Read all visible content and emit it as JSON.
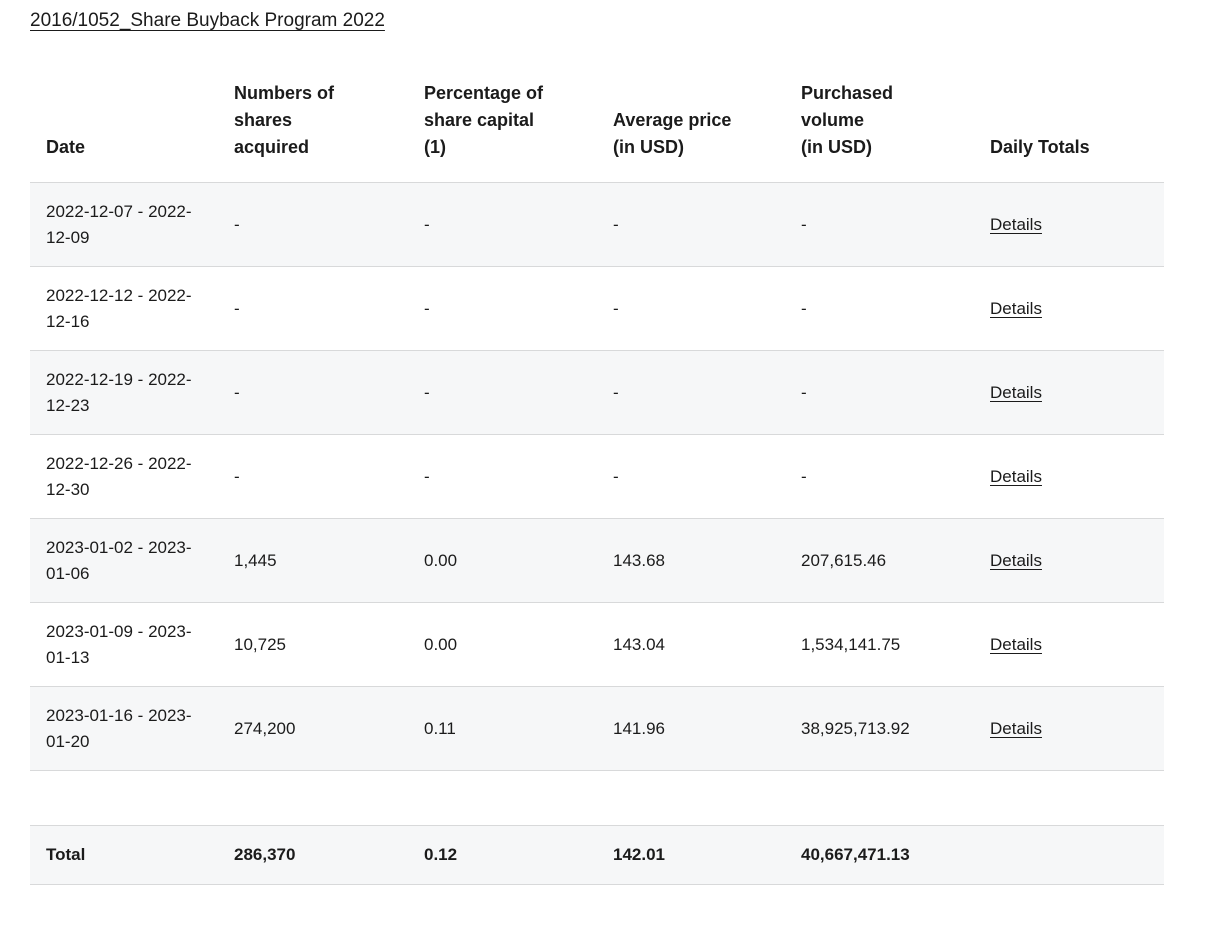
{
  "page": {
    "title": "2016/1052_Share Buyback Program 2022"
  },
  "theme": {
    "text_color": "#1b1b1b",
    "row_alt_background": "#f6f7f8",
    "border_color": "#d8d9da",
    "page_background": "#ffffff"
  },
  "table": {
    "columns": [
      {
        "id": "date",
        "lines": [
          "Date",
          "",
          ""
        ]
      },
      {
        "id": "shares",
        "lines": [
          "Numbers of",
          "shares",
          "acquired"
        ]
      },
      {
        "id": "percentage",
        "lines": [
          "Percentage of",
          "share capital",
          "(1)"
        ]
      },
      {
        "id": "avg_price",
        "lines": [
          "Average price",
          "(in USD)",
          ""
        ]
      },
      {
        "id": "volume",
        "lines": [
          "Purchased",
          "volume",
          "(in USD)"
        ]
      },
      {
        "id": "daily",
        "lines": [
          "Daily Totals",
          "",
          ""
        ]
      }
    ],
    "details_label": "Details",
    "rows": [
      {
        "date": "2022-12-07 - 2022-12-09",
        "shares": "-",
        "percentage": "-",
        "avg_price": "-",
        "volume": "-"
      },
      {
        "date": "2022-12-12 - 2022-12-16",
        "shares": "-",
        "percentage": "-",
        "avg_price": "-",
        "volume": "-"
      },
      {
        "date": "2022-12-19 - 2022-12-23",
        "shares": "-",
        "percentage": "-",
        "avg_price": "-",
        "volume": "-"
      },
      {
        "date": "2022-12-26 - 2022-12-30",
        "shares": "-",
        "percentage": "-",
        "avg_price": "-",
        "volume": "-"
      },
      {
        "date": "2023-01-02 - 2023-01-06",
        "shares": "1,445",
        "percentage": "0.00",
        "avg_price": "143.68",
        "volume": "207,615.46"
      },
      {
        "date": "2023-01-09 - 2023-01-13",
        "shares": "10,725",
        "percentage": "0.00",
        "avg_price": "143.04",
        "volume": "1,534,141.75"
      },
      {
        "date": "2023-01-16 - 2023-01-20",
        "shares": "274,200",
        "percentage": "0.11",
        "avg_price": "141.96",
        "volume": "38,925,713.92"
      }
    ],
    "total": {
      "label": "Total",
      "shares": "286,370",
      "percentage": "0.12",
      "avg_price": "142.01",
      "volume": "40,667,471.13"
    }
  }
}
